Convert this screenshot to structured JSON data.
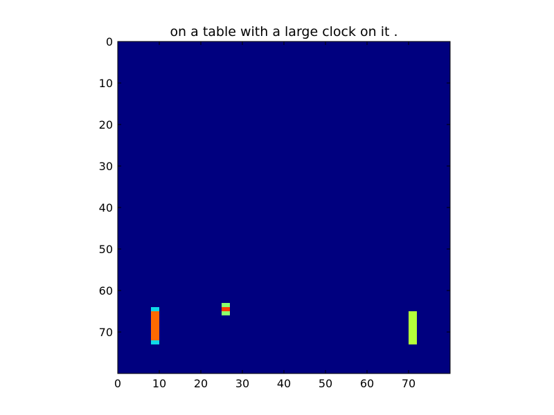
{
  "chart_data": {
    "type": "heatmap",
    "title": "on a table with a large clock on it .",
    "xlabel": "",
    "ylabel": "",
    "xlim": [
      0,
      80
    ],
    "ylim": [
      80,
      0
    ],
    "x_ticks": [
      0,
      10,
      20,
      30,
      40,
      50,
      60,
      70
    ],
    "y_ticks": [
      0,
      10,
      20,
      30,
      40,
      50,
      60,
      70
    ],
    "y_axis_inverted": true,
    "grid": false,
    "colormap": "jet",
    "background_value": 0,
    "background_color": "#00007f",
    "cells": [
      {
        "x": [
          8,
          10
        ],
        "y": [
          64,
          65
        ],
        "value": 0.35,
        "color": "#10d8e8"
      },
      {
        "x": [
          8,
          10
        ],
        "y": [
          65,
          72
        ],
        "value": 0.85,
        "color": "#ff6a00"
      },
      {
        "x": [
          8,
          10
        ],
        "y": [
          72,
          73
        ],
        "value": 0.35,
        "color": "#10d8e8"
      },
      {
        "x": [
          25,
          27
        ],
        "y": [
          63,
          64
        ],
        "value": 0.55,
        "color": "#8cff6b"
      },
      {
        "x": [
          25,
          27
        ],
        "y": [
          64,
          65
        ],
        "value": 0.9,
        "color": "#ff3a00"
      },
      {
        "x": [
          25,
          27
        ],
        "y": [
          65,
          66
        ],
        "value": 0.55,
        "color": "#8cff6b"
      },
      {
        "x": [
          70,
          72
        ],
        "y": [
          65,
          73
        ],
        "value": 0.62,
        "color": "#b4ff3a"
      }
    ]
  }
}
